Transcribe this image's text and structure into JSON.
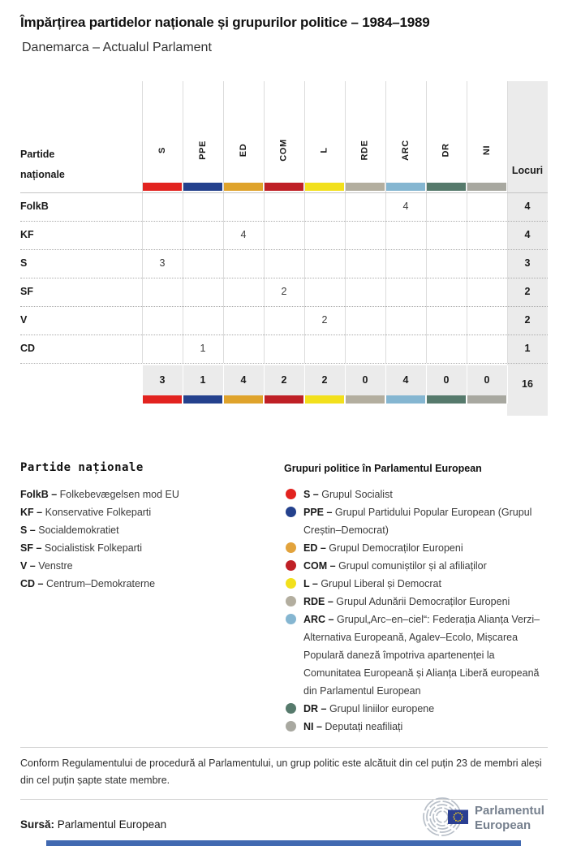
{
  "header": {
    "title": "Împărțirea partidelor naționale și grupurilor politice – 1984–1989",
    "subtitle": "Danemarca – Actualul Parlament"
  },
  "table": {
    "row_header": {
      "line1": "Partide",
      "line2": "naționale"
    },
    "seats_header": "Locuri",
    "columns": [
      {
        "code": "S",
        "color": "#e2231f"
      },
      {
        "code": "PPE",
        "color": "#24418d"
      },
      {
        "code": "ED",
        "color": "#dfa32b"
      },
      {
        "code": "COM",
        "color": "#bf2026"
      },
      {
        "code": "L",
        "color": "#f2e01c"
      },
      {
        "code": "RDE",
        "color": "#b3ae9f"
      },
      {
        "code": "ARC",
        "color": "#85b6d1"
      },
      {
        "code": "DR",
        "color": "#567a6c"
      },
      {
        "code": "NI",
        "color": "#a8a8a0"
      }
    ],
    "rows": [
      {
        "party": "FolkB",
        "cells": [
          "",
          "",
          "",
          "",
          "",
          "",
          "4",
          "",
          ""
        ],
        "seats": "4"
      },
      {
        "party": "KF",
        "cells": [
          "",
          "",
          "4",
          "",
          "",
          "",
          "",
          "",
          ""
        ],
        "seats": "4"
      },
      {
        "party": "S",
        "cells": [
          "3",
          "",
          "",
          "",
          "",
          "",
          "",
          "",
          ""
        ],
        "seats": "3"
      },
      {
        "party": "SF",
        "cells": [
          "",
          "",
          "",
          "2",
          "",
          "",
          "",
          "",
          ""
        ],
        "seats": "2"
      },
      {
        "party": "V",
        "cells": [
          "",
          "",
          "",
          "",
          "2",
          "",
          "",
          "",
          ""
        ],
        "seats": "2"
      },
      {
        "party": "CD",
        "cells": [
          "",
          "1",
          "",
          "",
          "",
          "",
          "",
          "",
          ""
        ],
        "seats": "1"
      }
    ],
    "totals": {
      "cells": [
        "3",
        "1",
        "4",
        "2",
        "2",
        "0",
        "4",
        "0",
        "0"
      ],
      "seats": "16"
    }
  },
  "legend_parties": {
    "title": "Partide naționale",
    "items": [
      {
        "code": "FolkB",
        "name": "Folkebevægelsen mod EU"
      },
      {
        "code": "KF",
        "name": "Konservative Folkeparti"
      },
      {
        "code": "S",
        "name": "Socialdemokratiet"
      },
      {
        "code": "SF",
        "name": "Socialistisk Folkeparti"
      },
      {
        "code": "V",
        "name": "Venstre"
      },
      {
        "code": "CD",
        "name": "Centrum–Demokraterne"
      }
    ]
  },
  "legend_groups": {
    "title": "Grupuri politice în Parlamentul European",
    "items": [
      {
        "code": "S",
        "color": "#e2231f",
        "name": "Grupul Socialist"
      },
      {
        "code": "PPE",
        "color": "#24418d",
        "name": "Grupul Partidului Popular European (Grupul Creștin–Democrat)"
      },
      {
        "code": "ED",
        "color": "#e2a33c",
        "name": "Grupul Democraților Europeni"
      },
      {
        "code": "COM",
        "color": "#bf2026",
        "name": "Grupul comuniștilor și al afiliaților"
      },
      {
        "code": "L",
        "color": "#f2e01c",
        "name": "Grupul Liberal și Democrat"
      },
      {
        "code": "RDE",
        "color": "#b3ae9f",
        "name": "Grupul Adunării Democraților Europeni"
      },
      {
        "code": "ARC",
        "color": "#85b6d1",
        "name": "Grupul„Arc–en–ciel“: Federația Alianța Verzi–Alternativa Europeană, Agalev–Ecolo, Mișcarea Populară daneză împotriva apartenenței la Comunitatea Europeană și Alianța Liberă europeană din Parlamentul European"
      },
      {
        "code": "DR",
        "color": "#567a6c",
        "name": "Grupul liniilor europene"
      },
      {
        "code": "NI",
        "color": "#a8a8a0",
        "name": "Deputați neafiliați"
      }
    ]
  },
  "footnote": "Conform Regulamentului de procedură al Parlamentului, un grup politic este alcătuit din cel puțin 23 de membri aleși din cel puțin șapte state membre.",
  "source": {
    "label": "Sursă:",
    "text": "Parlamentul European"
  },
  "logo": {
    "line1": "Parlamentul",
    "line2": "European"
  },
  "accent": {
    "bottom_bar_color": "#4169b1"
  },
  "chart_data": {
    "type": "table",
    "title": "Împărțirea partidelor naționale și grupurilor politice – 1984–1989",
    "subtitle": "Danemarca – Actualul Parlament",
    "columns": [
      "S",
      "PPE",
      "ED",
      "COM",
      "L",
      "RDE",
      "ARC",
      "DR",
      "NI",
      "Locuri"
    ],
    "rows": [
      {
        "party": "FolkB",
        "values": [
          null,
          null,
          null,
          null,
          null,
          null,
          4,
          null,
          null
        ],
        "seats": 4
      },
      {
        "party": "KF",
        "values": [
          null,
          null,
          4,
          null,
          null,
          null,
          null,
          null,
          null
        ],
        "seats": 4
      },
      {
        "party": "S",
        "values": [
          3,
          null,
          null,
          null,
          null,
          null,
          null,
          null,
          null
        ],
        "seats": 3
      },
      {
        "party": "SF",
        "values": [
          null,
          null,
          null,
          2,
          null,
          null,
          null,
          null,
          null
        ],
        "seats": 2
      },
      {
        "party": "V",
        "values": [
          null,
          null,
          null,
          null,
          2,
          null,
          null,
          null,
          null
        ],
        "seats": 2
      },
      {
        "party": "CD",
        "values": [
          null,
          1,
          null,
          null,
          null,
          null,
          null,
          null,
          null
        ],
        "seats": 1
      }
    ],
    "totals": {
      "values": [
        3,
        1,
        4,
        2,
        2,
        0,
        4,
        0,
        0
      ],
      "seats": 16
    }
  }
}
